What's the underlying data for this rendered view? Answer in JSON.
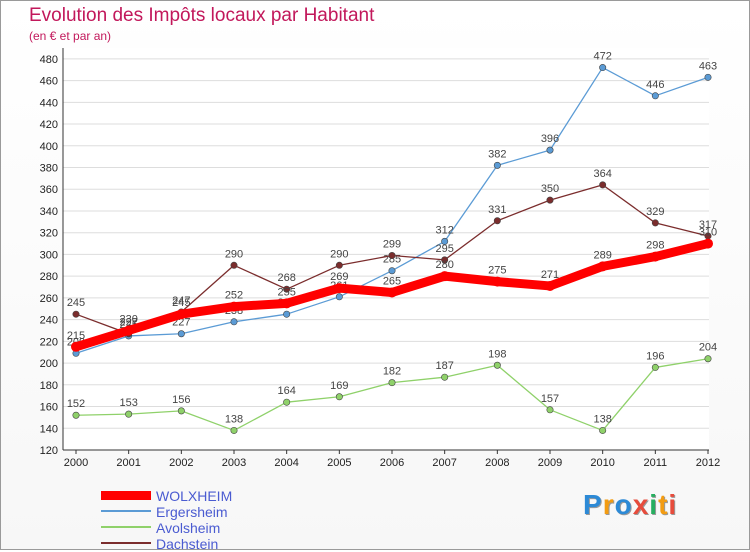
{
  "chart_data": {
    "type": "line",
    "title": "Evolution des Impôts locaux par Habitant",
    "subtitle": "(en € et par an)",
    "x": [
      "2000",
      "2001",
      "2002",
      "2003",
      "2004",
      "2005",
      "2006",
      "2007",
      "2008",
      "2009",
      "2010",
      "2011",
      "2012"
    ],
    "ylim": [
      120,
      490
    ],
    "yticks": [
      120,
      140,
      160,
      180,
      200,
      220,
      240,
      260,
      280,
      300,
      320,
      340,
      360,
      380,
      400,
      420,
      440,
      460,
      480
    ],
    "series": [
      {
        "name": "Ergersheim",
        "color": "#5b9bd5",
        "values": [
          209,
          225,
          227,
          238,
          245,
          261,
          285,
          312,
          382,
          396,
          472,
          446,
          463
        ],
        "labels": [
          "209",
          "225",
          "227",
          "238",
          "245",
          "261",
          "285",
          "312",
          "382",
          "396",
          "472",
          "446",
          "463"
        ]
      },
      {
        "name": "Avolsheim",
        "color": "#8fd16a",
        "values": [
          152,
          153,
          156,
          138,
          164,
          169,
          182,
          187,
          198,
          157,
          138,
          196,
          204
        ],
        "labels": [
          "152",
          "153",
          "156",
          "138",
          "164",
          "169",
          "182",
          "187",
          "198",
          "157",
          "138",
          "196",
          "204"
        ]
      },
      {
        "name": "Dachstein",
        "color": "#7b2d2d",
        "values": [
          245,
          227,
          247,
          290,
          268,
          290,
          299,
          295,
          331,
          350,
          364,
          329,
          317
        ],
        "labels": [
          "245",
          "227",
          "247",
          "290",
          "268",
          "290",
          "299",
          "295",
          "331",
          "350",
          "364",
          "329",
          "317"
        ]
      },
      {
        "name": "WOLXHEIM",
        "color": "#ff0000",
        "values": [
          215,
          230,
          245,
          252,
          255,
          269,
          265,
          280,
          275,
          271,
          289,
          298,
          310
        ],
        "labels": [
          "215",
          "230",
          "245",
          "252",
          "255",
          "269",
          "265",
          "280",
          "275",
          "271",
          "289",
          "298",
          "310"
        ]
      }
    ],
    "legend_order": [
      "WOLXHEIM",
      "Ergersheim",
      "Avolsheim",
      "Dachstein"
    ]
  },
  "logo": {
    "text": "Proxiti",
    "letters": [
      {
        "ch": "P",
        "color": "#2d8ad6"
      },
      {
        "ch": "r",
        "color": "#f39c12"
      },
      {
        "ch": "o",
        "color": "#2d8ad6"
      },
      {
        "ch": "x",
        "color": "#e74c3c"
      },
      {
        "ch": "i",
        "color": "#27ae60"
      },
      {
        "ch": "t",
        "color": "#f39c12"
      },
      {
        "ch": "i",
        "color": "#e74c3c"
      }
    ]
  }
}
